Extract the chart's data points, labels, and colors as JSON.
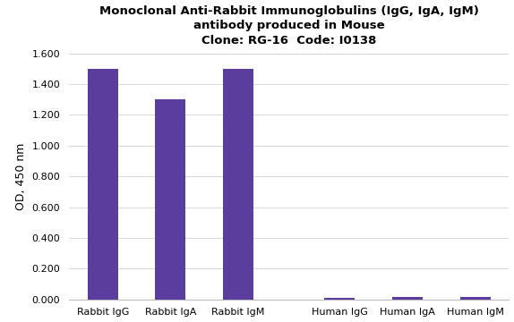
{
  "categories": [
    "Rabbit IgG",
    "Rabbit IgA",
    "Rabbit IgM",
    "Human IgG",
    "Human IgA",
    "Human IgM"
  ],
  "values": [
    1.5,
    1.3,
    1.5,
    0.01,
    0.018,
    0.015
  ],
  "bar_color": "#5B3D9E",
  "title_line1": "Monoclonal Anti-Rabbit Immunoglobulins (IgG, IgA, IgM)",
  "title_line2": "antibody produced in Mouse",
  "title_line3": "Clone: RG-16  Code: I0138",
  "ylabel": "OD, 450 nm",
  "ylim": [
    0.0,
    1.6
  ],
  "yticks": [
    0.0,
    0.2,
    0.4,
    0.6,
    0.8,
    1.0,
    1.2,
    1.4,
    1.6
  ],
  "ytick_labels": [
    "0.000",
    "0.200",
    "0.400",
    "0.600",
    "0.800",
    "1.000",
    "1.200",
    "1.400",
    "1.600"
  ],
  "background_color": "#FFFFFF",
  "grid_color": "#D8D8D8",
  "title_fontsize": 9.5,
  "axis_label_fontsize": 9,
  "tick_fontsize": 8
}
